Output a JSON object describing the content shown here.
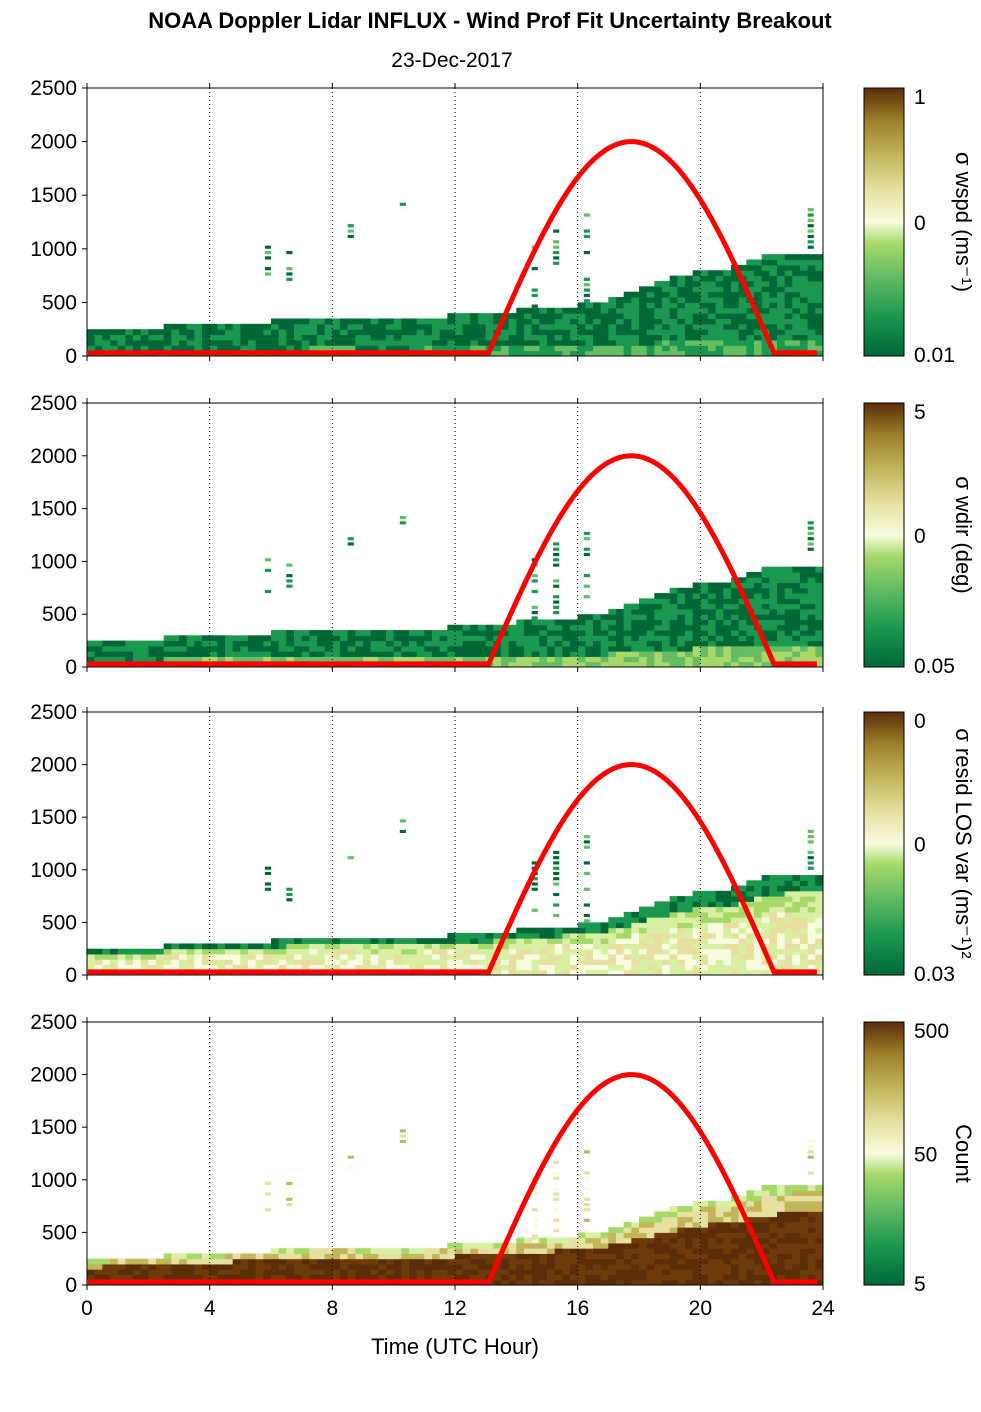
{
  "title": "NOAA Doppler Lidar INFLUX - Wind Prof Fit Uncertainty Breakout",
  "subtitle": "23-Dec-2017",
  "xlabel": "Time (UTC Hour)",
  "colors": {
    "colormap": [
      "#006837",
      "#1a9850",
      "#66bd63",
      "#a6d96a",
      "#d9f0a3",
      "#f7fcdf",
      "#e6e1a0",
      "#c2b55a",
      "#9c7f2a",
      "#6e3a0a",
      "#5a2d07"
    ],
    "sun_curve": "#ff0000"
  },
  "chart_data": [
    {
      "type": "heatmap",
      "name": "panel-wspd",
      "xlim": [
        0,
        24
      ],
      "ylim": [
        0,
        2500
      ],
      "xticks": [
        "0",
        "4",
        "8",
        "12",
        "16",
        "20",
        "24"
      ],
      "yticks": [
        "0",
        "500",
        "1000",
        "1500",
        "2000",
        "2500"
      ],
      "x_grid_lines": [
        4,
        8,
        12,
        16,
        20,
        24
      ],
      "colorbar": {
        "label": "σ wspd (ms⁻¹)",
        "ticks": [
          "1",
          "0",
          "0.01"
        ],
        "scale": "log"
      },
      "data_top_profile": {
        "time": [
          0,
          1,
          2,
          3,
          4,
          5,
          6,
          7,
          8,
          9,
          10,
          11,
          12,
          13,
          14,
          15,
          16,
          17,
          18,
          19,
          20,
          21,
          22,
          23,
          23.8
        ],
        "height": [
          200,
          230,
          240,
          260,
          250,
          300,
          300,
          330,
          350,
          330,
          330,
          330,
          360,
          370,
          400,
          420,
          450,
          500,
          600,
          700,
          780,
          800,
          900,
          950,
          950
        ]
      },
      "sun_elevation_curve": {
        "start_hour": 13.1,
        "peak_hour": 17.7,
        "end_hour": 22.4,
        "peak_height": 2000,
        "baseline": 30
      }
    },
    {
      "type": "heatmap",
      "name": "panel-wdir",
      "xlim": [
        0,
        24
      ],
      "ylim": [
        0,
        2500
      ],
      "xticks": [
        "0",
        "4",
        "8",
        "12",
        "16",
        "20",
        "24"
      ],
      "yticks": [
        "0",
        "500",
        "1000",
        "1500",
        "2000",
        "2500"
      ],
      "colorbar": {
        "label": "σ wdir (deg)",
        "ticks": [
          "5",
          "0",
          "0.05"
        ],
        "scale": "log"
      }
    },
    {
      "type": "heatmap",
      "name": "panel-resid",
      "xlim": [
        0,
        24
      ],
      "ylim": [
        0,
        2500
      ],
      "xticks": [
        "0",
        "4",
        "8",
        "12",
        "16",
        "20",
        "24"
      ],
      "yticks": [
        "0",
        "500",
        "1000",
        "1500",
        "2000",
        "2500"
      ],
      "colorbar": {
        "label": "σ resid LOS var (ms⁻¹)²",
        "ticks": [
          "0",
          "0",
          "0.03"
        ],
        "scale": "log"
      }
    },
    {
      "type": "heatmap",
      "name": "panel-count",
      "xlim": [
        0,
        24
      ],
      "ylim": [
        0,
        2500
      ],
      "xticks": [
        "0",
        "4",
        "8",
        "12",
        "16",
        "20",
        "24"
      ],
      "yticks": [
        "0",
        "500",
        "1000",
        "1500",
        "2000",
        "2500"
      ],
      "colorbar": {
        "label": "Count",
        "ticks": [
          "500",
          "50",
          "5"
        ],
        "scale": "log"
      }
    }
  ]
}
